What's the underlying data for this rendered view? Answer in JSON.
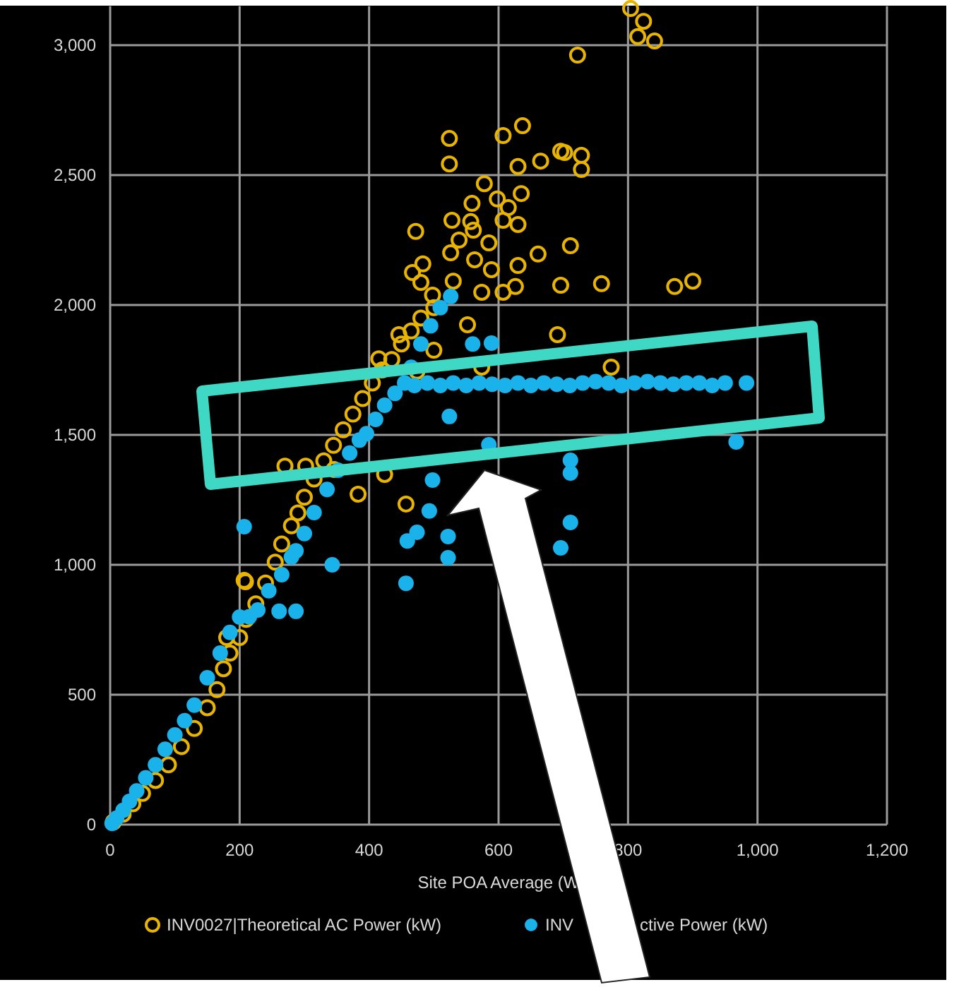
{
  "chart_data": {
    "type": "scatter",
    "xlabel": "Site POA Average (W",
    "annotations": [
      "ctive Power (kW)"
    ],
    "xlim": [
      0,
      1200
    ],
    "ylim": [
      0,
      3150
    ],
    "xticks": [
      0,
      200,
      400,
      600,
      800,
      {
        "value": 1000,
        "label": "1,000"
      },
      {
        "value": 1200,
        "label": "1,200"
      }
    ],
    "yticks": [
      0,
      500,
      {
        "value": 1000,
        "label": "1,000"
      },
      {
        "value": 1500,
        "label": "1,500"
      },
      {
        "value": 2000,
        "label": "2,000"
      },
      {
        "value": 2500,
        "label": "2,500"
      },
      {
        "value": 3000,
        "label": "3,000"
      }
    ],
    "grid": true,
    "legend": "bottom",
    "marker": "circle",
    "series": [
      {
        "name": "INV0027|Theoretical AC Power (kW)",
        "color": "#e8b400",
        "x": [
          5,
          20,
          35,
          50,
          70,
          90,
          110,
          130,
          150,
          165,
          175,
          185,
          200,
          210,
          225,
          240,
          255,
          265,
          280,
          290,
          300,
          315,
          330,
          345,
          360,
          375,
          390,
          405,
          420,
          435,
          450,
          465,
          480,
          500,
          207,
          270,
          302,
          346,
          383,
          424,
          457,
          180,
          209,
          415,
          446,
          474,
          500,
          552,
          574,
          691,
          774,
          804,
          824,
          815,
          841,
          722,
          524,
          524,
          607,
          637,
          665,
          696,
          630,
          578,
          598,
          615,
          635,
          559,
          528,
          557,
          607,
          630,
          472,
          539,
          561,
          585,
          526,
          661,
          483,
          467,
          563,
          589,
          630,
          480,
          574,
          607,
          626,
          696,
          530,
          498,
          702,
          728,
          728,
          711,
          759,
          872,
          900
        ],
        "values": [
          10,
          40,
          80,
          120,
          170,
          230,
          300,
          370,
          450,
          520,
          600,
          660,
          720,
          790,
          850,
          930,
          1010,
          1080,
          1150,
          1200,
          1260,
          1330,
          1400,
          1460,
          1520,
          1580,
          1640,
          1700,
          1750,
          1790,
          1850,
          1900,
          1950,
          1990,
          940,
          1380,
          1380,
          1367,
          1272,
          1348,
          1234,
          720,
          935,
          1793,
          1886,
          1745,
          1826,
          1924,
          1761,
          1886,
          1761,
          3141,
          3092,
          3033,
          3016,
          2962,
          2641,
          2543,
          2652,
          2690,
          2554,
          2592,
          2533,
          2467,
          2408,
          2375,
          2429,
          2391,
          2326,
          2321,
          2326,
          2310,
          2283,
          2250,
          2288,
          2239,
          2201,
          2196,
          2158,
          2125,
          2174,
          2136,
          2152,
          2087,
          2049,
          2049,
          2071,
          2076,
          2092,
          2038,
          2587,
          2576,
          2522,
          2228,
          2082,
          2071,
          2092
        ]
      },
      {
        "name": "INV",
        "color": "#1ab2ea",
        "x": [
          3,
          10,
          20,
          30,
          41,
          55,
          70,
          85,
          100,
          115,
          130,
          150,
          170,
          185,
          200,
          215,
          228,
          245,
          265,
          280,
          287,
          300,
          315,
          335,
          352,
          370,
          385,
          396,
          410,
          424,
          440,
          455,
          465,
          480,
          495,
          510,
          526,
          470,
          490,
          510,
          530,
          550,
          570,
          590,
          610,
          630,
          650,
          670,
          690,
          710,
          730,
          750,
          770,
          790,
          810,
          830,
          850,
          870,
          890,
          910,
          930,
          950,
          983,
          589,
          560,
          585,
          522,
          711,
          967,
          711,
          711,
          696,
          498,
          493,
          522,
          459,
          474,
          457,
          524,
          343,
          207,
          261,
          287
        ],
        "values": [
          5,
          25,
          55,
          90,
          130,
          180,
          230,
          290,
          345,
          400,
          460,
          565,
          660,
          740,
          799,
          800,
          826,
          900,
          962,
          1030,
          1054,
          1120,
          1201,
          1290,
          1364,
          1430,
          1480,
          1505,
          1560,
          1614,
          1660,
          1700,
          1760,
          1850,
          1920,
          1990,
          2033,
          1690,
          1700,
          1690,
          1700,
          1690,
          1700,
          1695,
          1690,
          1700,
          1690,
          1700,
          1695,
          1690,
          1700,
          1705,
          1700,
          1690,
          1700,
          1705,
          1700,
          1695,
          1700,
          1700,
          1690,
          1700,
          1700,
          1853,
          1850,
          1462,
          1109,
          1163,
          1473,
          1402,
          1353,
          1065,
          1326,
          1207,
          1027,
          1092,
          1125,
          929,
          1571,
          1000,
          1147,
          821,
          821
        ]
      }
    ]
  }
}
